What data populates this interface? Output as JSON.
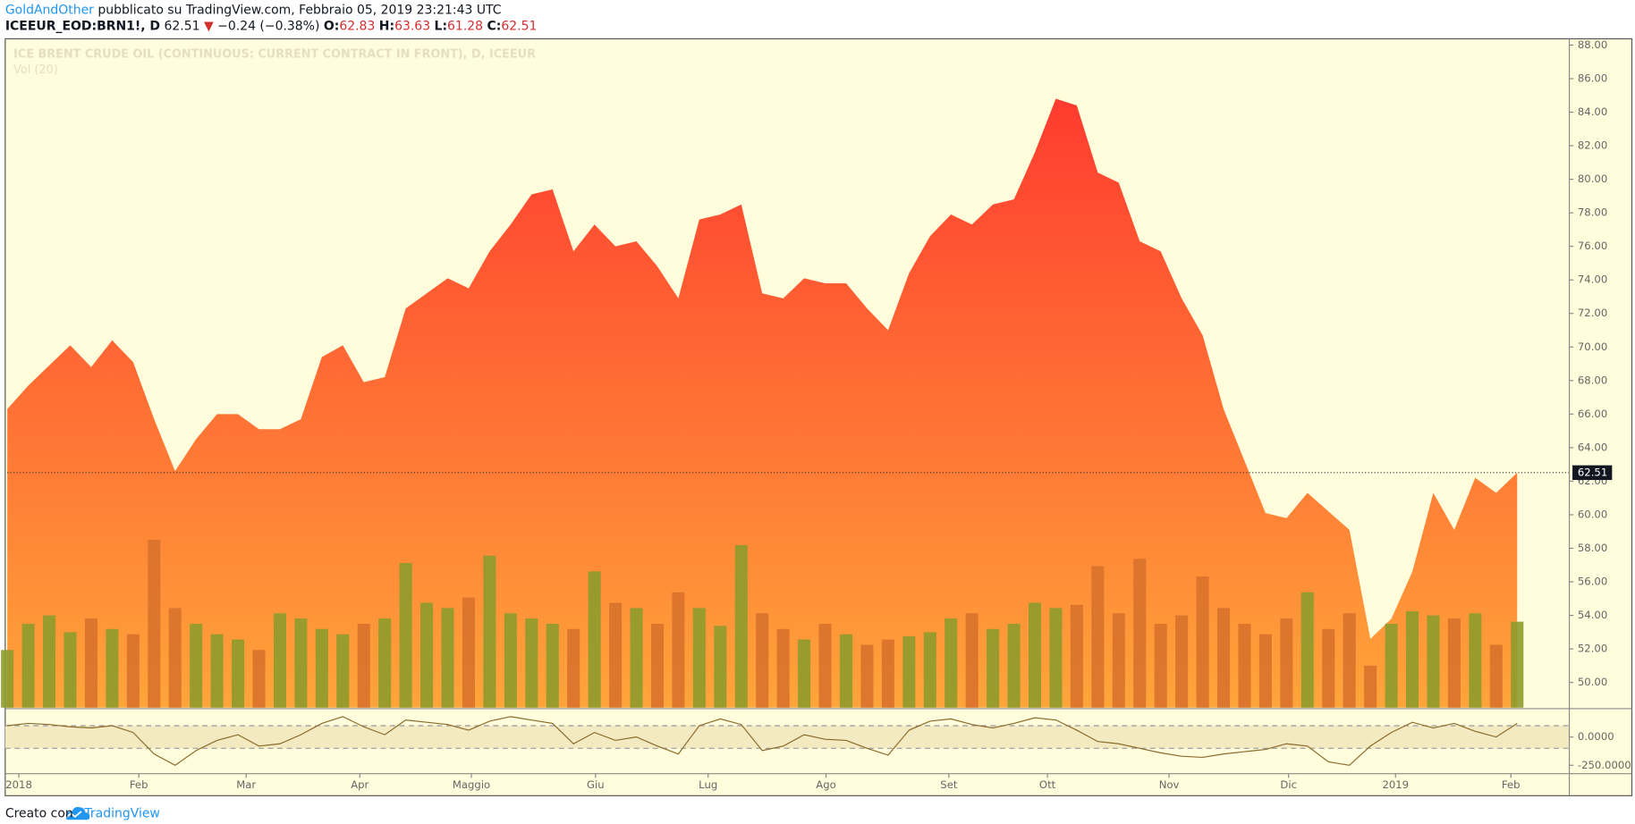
{
  "header": {
    "author": "GoldAndOther",
    "published": "pubblicato su TradingView.com, Febbraio 05, 2019 23:21:43 UTC",
    "symbol": "ICEEUR_EOD:BRN1!, D",
    "last": 62.51,
    "direction": "▼",
    "change": "−0.24 (−0.38%)",
    "o_label": "O:",
    "open": 62.83,
    "h_label": "H:",
    "high": 63.63,
    "l_label": "L:",
    "low": 61.28,
    "c_label": "C:",
    "close": 62.51
  },
  "chart_data": [
    {
      "type": "area",
      "title": "ICE BRENT CRUDE OIL (CONTINUOUS: CURRENT CONTRACT IN FRONT), D, ICEEUR",
      "values": [
        66.3,
        67.7,
        68.9,
        70.1,
        68.8,
        70.4,
        69.1,
        65.7,
        62.6,
        64.5,
        66.0,
        66.0,
        65.1,
        65.1,
        65.7,
        69.4,
        70.1,
        67.9,
        68.2,
        72.3,
        73.2,
        74.1,
        73.5,
        75.7,
        77.3,
        79.1,
        79.4,
        75.7,
        77.3,
        76.0,
        76.3,
        74.8,
        72.9,
        77.6,
        77.9,
        78.5,
        73.2,
        72.9,
        74.1,
        73.8,
        73.8,
        72.3,
        71.0,
        74.4,
        76.6,
        77.9,
        77.3,
        78.5,
        78.8,
        81.6,
        84.8,
        84.4,
        80.4,
        79.8,
        76.3,
        75.7,
        72.9,
        70.7,
        66.3,
        63.2,
        60.1,
        59.8,
        61.3,
        60.2,
        59.1,
        52.6,
        53.8,
        56.6,
        61.3,
        59.1,
        62.2,
        61.3,
        62.51
      ],
      "last_label": "62.51",
      "color_top": "#ff3b2f",
      "color_bottom": "#ffa53a",
      "ylim": [
        48.5,
        88.375
      ],
      "yticks": [
        {
          "value": 50,
          "label": "50.00"
        },
        {
          "value": 52,
          "label": "52.00"
        },
        {
          "value": 54,
          "label": "54.00"
        },
        {
          "value": 56,
          "label": "56.00"
        },
        {
          "value": 58,
          "label": "58.00"
        },
        {
          "value": 60,
          "label": "60.00"
        },
        {
          "value": 62,
          "label": "62.00"
        },
        {
          "value": 64,
          "label": "64.00"
        },
        {
          "value": 66,
          "label": "66.00"
        },
        {
          "value": 68,
          "label": "68.00"
        },
        {
          "value": 70,
          "label": "70.00"
        },
        {
          "value": 72,
          "label": "72.00"
        },
        {
          "value": 74,
          "label": "74.00"
        },
        {
          "value": 76,
          "label": "76.00"
        },
        {
          "value": 78,
          "label": "78.00"
        },
        {
          "value": 80,
          "label": "80.00"
        },
        {
          "value": 82,
          "label": "82.00"
        },
        {
          "value": 84,
          "label": "84.00"
        },
        {
          "value": 86,
          "label": "86.00"
        },
        {
          "value": 88,
          "label": "88.00"
        }
      ],
      "xticks": [
        {
          "value": 0.55,
          "label": "2018"
        },
        {
          "value": 6.27,
          "label": "Feb"
        },
        {
          "value": 11.39,
          "label": "Mar"
        },
        {
          "value": 16.81,
          "label": "Apr"
        },
        {
          "value": 22.13,
          "label": "Maggio"
        },
        {
          "value": 28.05,
          "label": "Giu"
        },
        {
          "value": 33.42,
          "label": "Lug"
        },
        {
          "value": 39.04,
          "label": "Ago"
        },
        {
          "value": 44.9,
          "label": "Set"
        },
        {
          "value": 49.6,
          "label": "Ott"
        },
        {
          "value": 55.4,
          "label": "Nov"
        },
        {
          "value": 61.1,
          "label": "Dic"
        },
        {
          "value": 66.2,
          "label": "2019"
        },
        {
          "value": 71.7,
          "label": "Feb"
        }
      ]
    },
    {
      "type": "bar",
      "title": "Vol (20)",
      "values": [
        55,
        80,
        88,
        72,
        85,
        75,
        70,
        160,
        95,
        80,
        70,
        65,
        55,
        90,
        85,
        75,
        70,
        80,
        85,
        138,
        100,
        95,
        105,
        145,
        90,
        85,
        80,
        75,
        130,
        100,
        95,
        80,
        110,
        95,
        78,
        155,
        90,
        75,
        65,
        80,
        70,
        60,
        65,
        68,
        72,
        85,
        90,
        75,
        80,
        100,
        95,
        98,
        135,
        90,
        142,
        80,
        88,
        125,
        95,
        80,
        70,
        85,
        110,
        75,
        90,
        40,
        80,
        92,
        88,
        85,
        90,
        60,
        82
      ],
      "up_color": "#8e9b2c",
      "down_color": "#d9722c",
      "ylim": [
        0,
        638
      ]
    },
    {
      "type": "line",
      "values": [
        100,
        120,
        110,
        90,
        80,
        100,
        40,
        -150,
        -250,
        -120,
        -30,
        20,
        -80,
        -60,
        20,
        120,
        180,
        90,
        20,
        150,
        130,
        110,
        60,
        140,
        180,
        150,
        120,
        -60,
        40,
        -30,
        0,
        -80,
        -150,
        100,
        160,
        110,
        -120,
        -80,
        20,
        -20,
        -30,
        -100,
        -160,
        60,
        140,
        160,
        110,
        80,
        120,
        170,
        150,
        60,
        -40,
        -60,
        -100,
        -140,
        -170,
        -180,
        -150,
        -130,
        -110,
        -60,
        -80,
        -220,
        -250,
        -80,
        40,
        130,
        80,
        120,
        50,
        0,
        120
      ],
      "color": "#8a6a2a",
      "band_color": "#f3eac2",
      "bands": [
        100,
        -100
      ],
      "ylim": [
        -315,
        241
      ],
      "yticks": [
        {
          "value": 0,
          "label": "0.0000"
        },
        {
          "value": -250,
          "label": "-250.0000"
        }
      ]
    }
  ],
  "footer": {
    "made_with": "Creato con",
    "brand": "TradingView"
  }
}
